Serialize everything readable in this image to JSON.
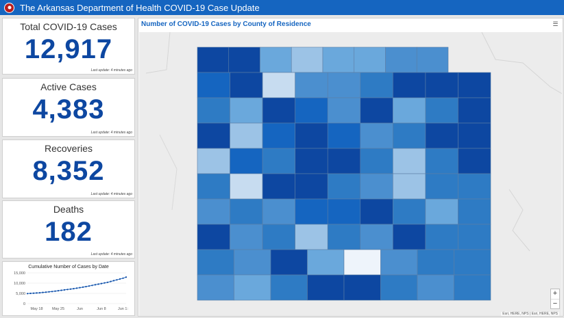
{
  "header": {
    "title": "The Arkansas Department of Health COVID-19 Case Update"
  },
  "cards": [
    {
      "title": "Total COVID-19 Cases",
      "value": "12,917",
      "updated": "Last update: 4 minutes ago"
    },
    {
      "title": "Active Cases",
      "value": "4,383",
      "updated": "Last update: 4 minutes ago"
    },
    {
      "title": "Recoveries",
      "value": "8,352",
      "updated": "Last update: 4 minutes ago"
    },
    {
      "title": "Deaths",
      "value": "182",
      "updated": "Last update: 4 minutes ago"
    }
  ],
  "chart_data": {
    "type": "line",
    "title": "Cumulative Number of Cases by Date",
    "xlabel": "",
    "ylabel": "",
    "ylim": [
      0,
      15000
    ],
    "yticks": [
      "15,000",
      "10,000",
      "5,000",
      "0"
    ],
    "xticks": [
      "May 18",
      "May 25",
      "Jun",
      "Jun 8",
      "Jun 1:"
    ],
    "x": [
      "May 15",
      "May 16",
      "May 17",
      "May 18",
      "May 19",
      "May 20",
      "May 21",
      "May 22",
      "May 23",
      "May 24",
      "May 25",
      "May 26",
      "May 27",
      "May 28",
      "May 29",
      "May 30",
      "May 31",
      "Jun 1",
      "Jun 2",
      "Jun 3",
      "Jun 4",
      "Jun 5",
      "Jun 6",
      "Jun 7",
      "Jun 8",
      "Jun 9",
      "Jun 10",
      "Jun 11",
      "Jun 12",
      "Jun 13",
      "Jun 14",
      "Jun 15",
      "Jun 16"
    ],
    "series": [
      {
        "values": [
          4900,
          5000,
          5100,
          5200,
          5300,
          5450,
          5600,
          5750,
          5900,
          6100,
          6300,
          6500,
          6700,
          6900,
          7100,
          7300,
          7550,
          7800,
          8050,
          8300,
          8600,
          8900,
          9200,
          9500,
          9800,
          10100,
          10400,
          10800,
          11200,
          11600,
          12000,
          12400,
          12917
        ]
      }
    ],
    "grid": true
  },
  "map": {
    "title": "Number of COVID-19 Cases by County of Residence",
    "attribution": "Esri, HERE, NPS | Esri, HERE, NPS",
    "zoom_in": "+",
    "zoom_out": "−",
    "colors": {
      "darkest": "#0d47a1",
      "dark": "#1565c0",
      "mid": "#2e7bc4",
      "medium": "#4b8fcf",
      "light": "#6aa8dc",
      "lighter": "#9cc3e6",
      "lightest": "#c7dcf0",
      "palest": "#eef4fb"
    }
  }
}
